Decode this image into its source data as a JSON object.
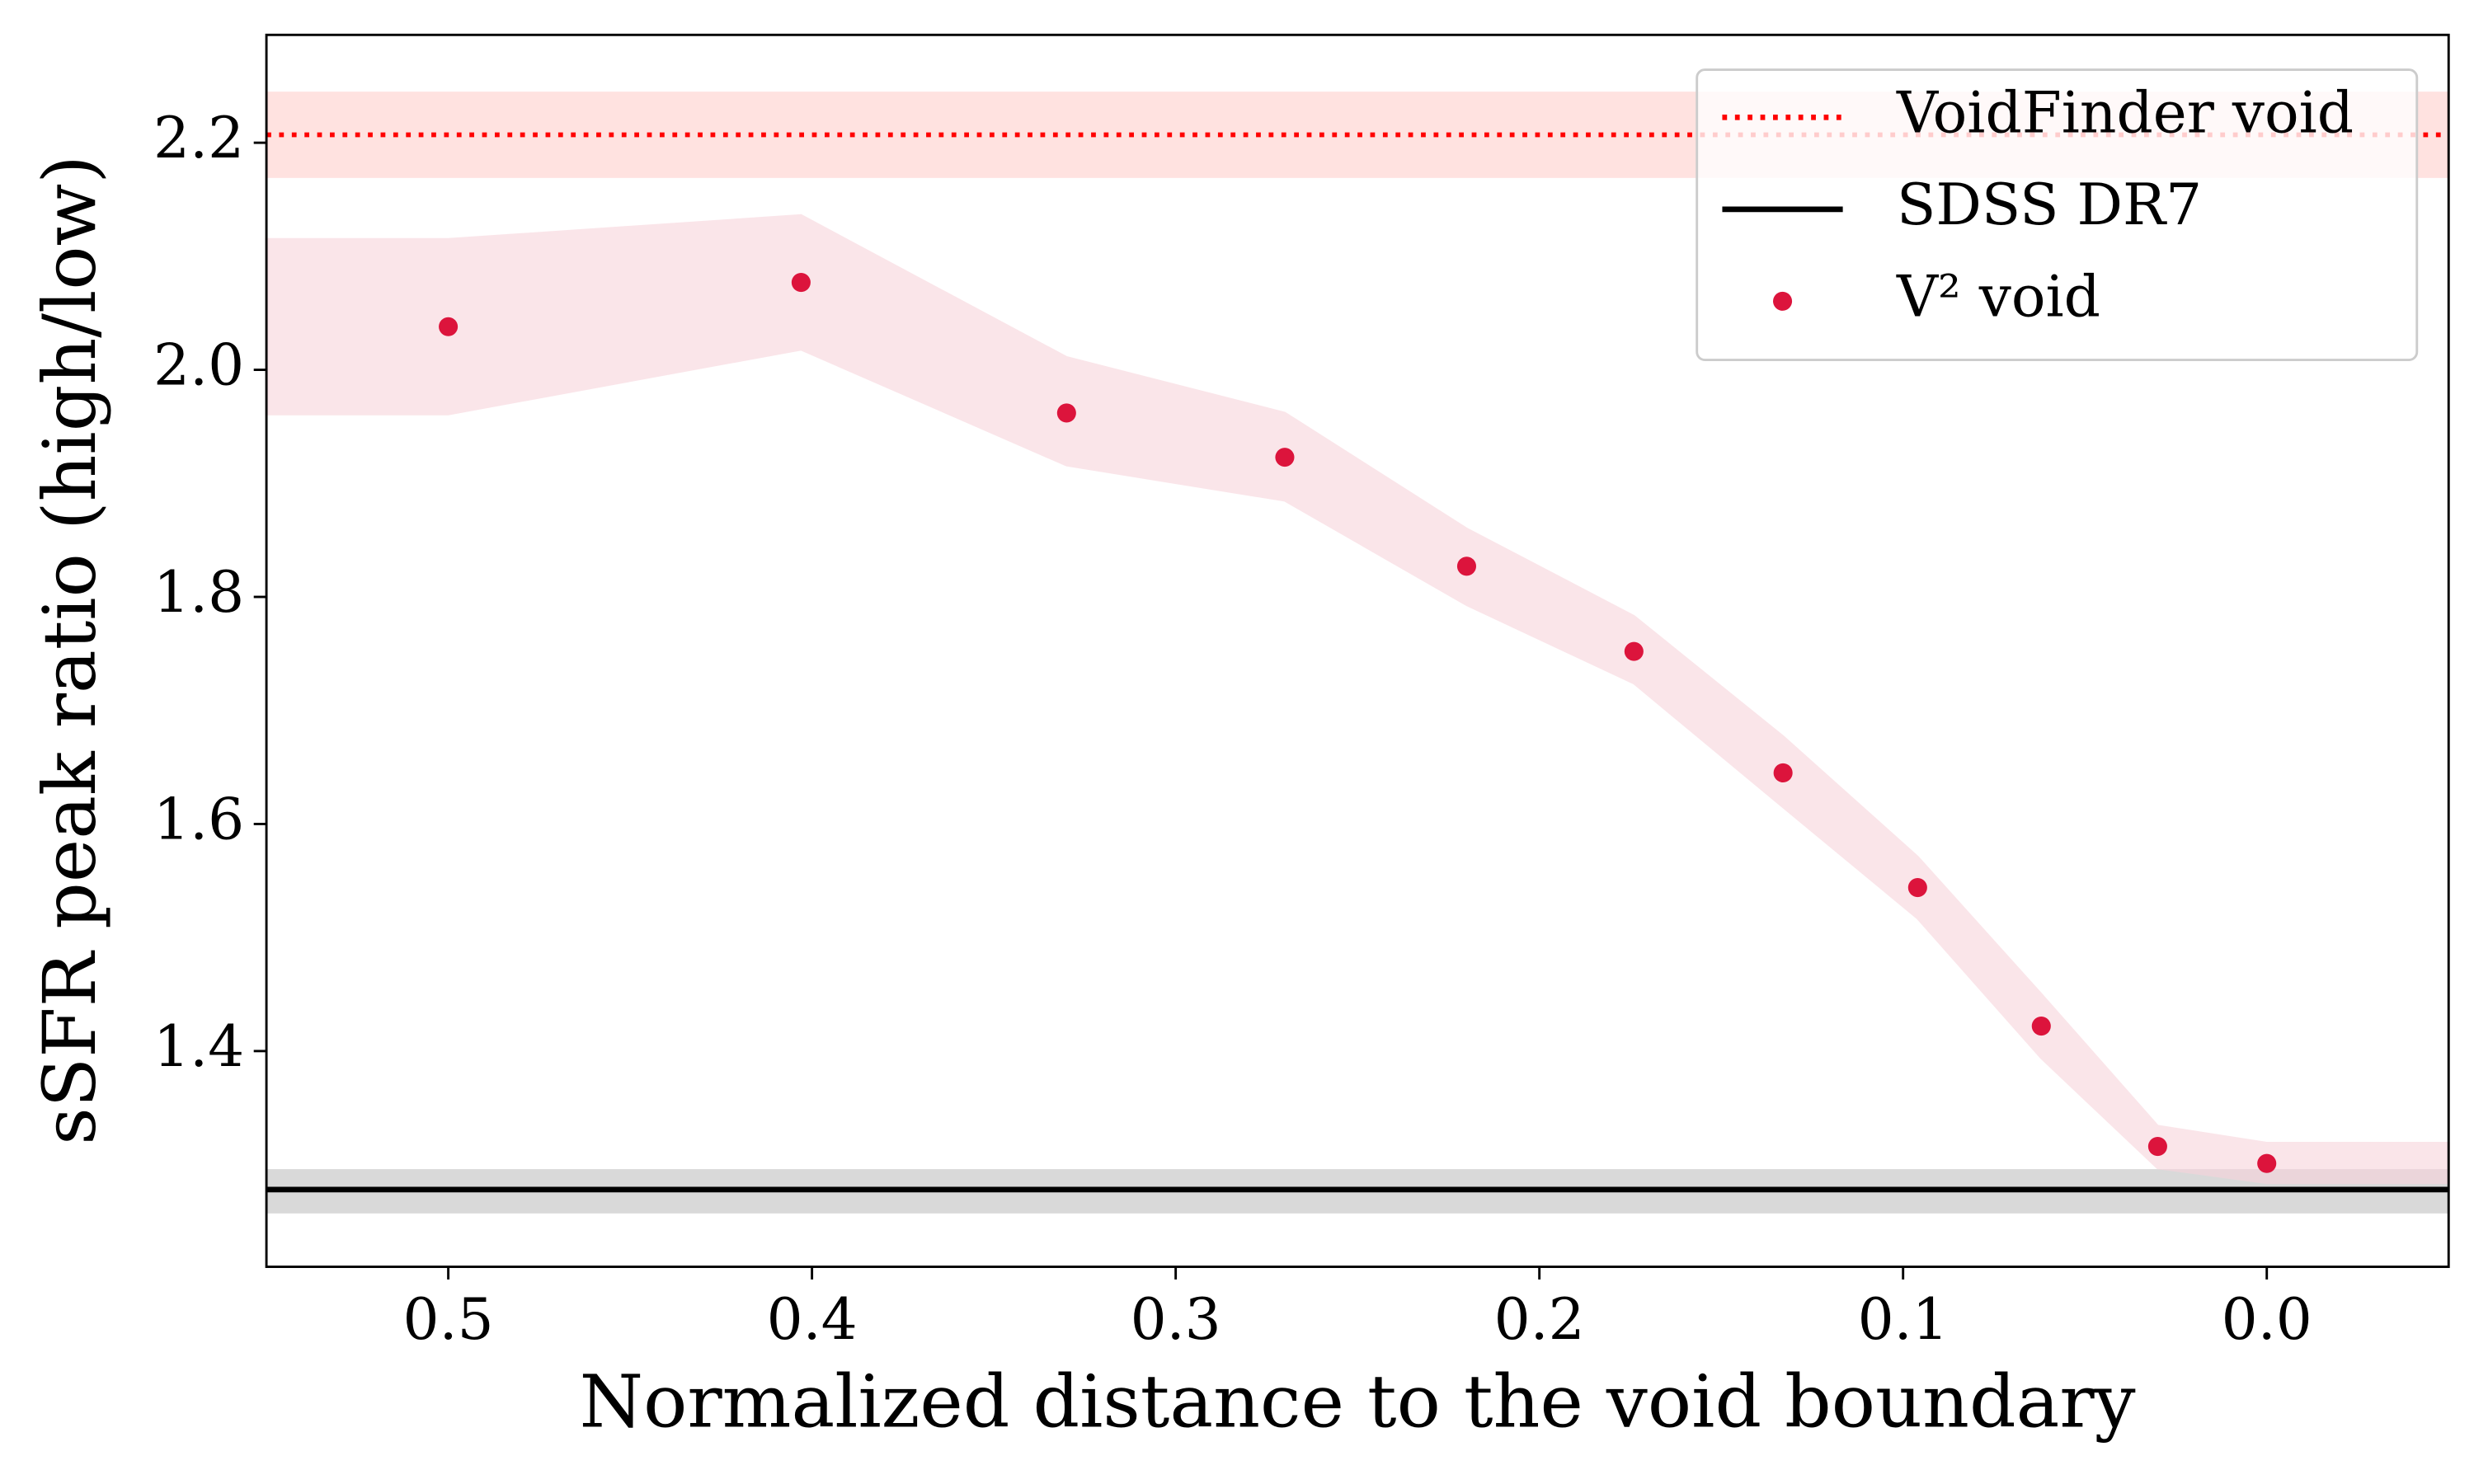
{
  "chart_data": {
    "type": "scatter",
    "xlabel": "Normalized distance to the void boundary",
    "ylabel": "sSFR peak ratio (high/low)",
    "xlim": [
      0.55,
      -0.05
    ],
    "xticks": [
      0.5,
      0.4,
      0.3,
      0.2,
      0.1,
      {
        "value": 0,
        "label": "0.0"
      }
    ],
    "ylim": [
      1.21,
      2.295
    ],
    "yticks": [
      1.4,
      1.6,
      1.8,
      {
        "value": 2,
        "label": "2.0"
      },
      2.2
    ],
    "legend": "upper right",
    "reference_lines": [
      {
        "name": "VoidFinder void",
        "value": 2.207,
        "lower": 2.169,
        "upper": 2.245,
        "color": "#ff0000",
        "band_color": "#ffe2e0",
        "style": "dotted"
      },
      {
        "name": "SDSS DR7",
        "value": 1.278,
        "lower": 1.257,
        "upper": 1.296,
        "color": "#000000",
        "band_color": "#d9d9d9",
        "style": "solid"
      }
    ],
    "x": [
      0.5,
      0.403,
      0.33,
      0.27,
      0.22,
      0.174,
      0.133,
      0.096,
      0.062,
      0.03,
      0
    ],
    "series": [
      {
        "name": "V² void",
        "color": "#dc143c",
        "values": [
          2.038,
          2.077,
          1.962,
          1.923,
          1.827,
          1.752,
          1.645,
          1.544,
          1.422,
          1.316,
          1.301
        ],
        "band": {
          "color": "#f8d4dc",
          "x": [
            0.55,
            0.5,
            0.403,
            0.33,
            0.27,
            0.22,
            0.174,
            0.133,
            0.096,
            0.062,
            0.03,
            0,
            -0.05
          ],
          "lower": [
            1.961,
            1.961,
            2.018,
            1.916,
            1.885,
            1.793,
            1.724,
            1.615,
            1.517,
            1.394,
            1.297,
            1.284,
            1.284
          ],
          "upper": [
            2.115,
            2.115,
            2.136,
            2.011,
            1.962,
            1.86,
            1.783,
            1.677,
            1.571,
            1.45,
            1.334,
            1.319,
            1.319
          ]
        }
      }
    ]
  }
}
